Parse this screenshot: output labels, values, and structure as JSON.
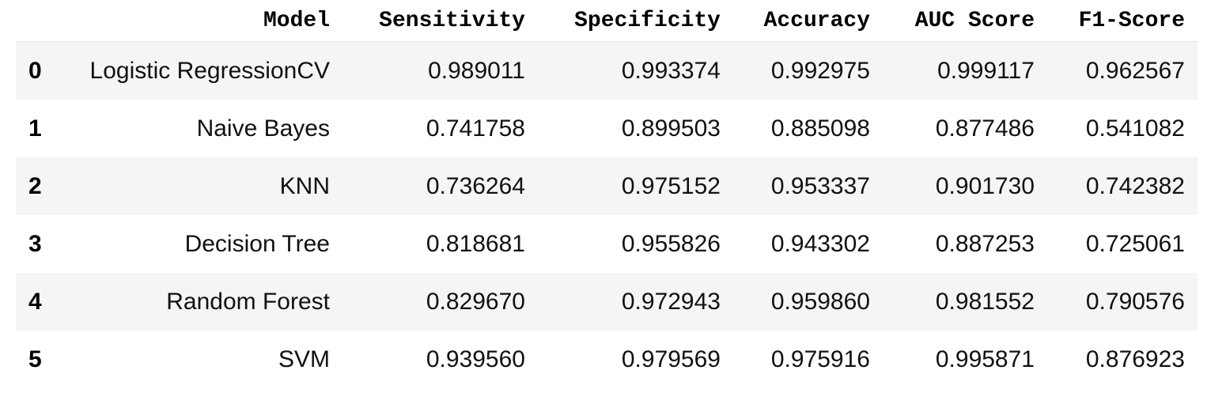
{
  "table": {
    "columns": [
      "Model",
      "Sensitivity",
      "Specificity",
      "Accuracy",
      "AUC Score",
      "F1-Score"
    ],
    "rows": [
      {
        "index": "0",
        "cells": [
          "Logistic RegressionCV",
          "0.989011",
          "0.993374",
          "0.992975",
          "0.999117",
          "0.962567"
        ]
      },
      {
        "index": "1",
        "cells": [
          "Naive Bayes",
          "0.741758",
          "0.899503",
          "0.885098",
          "0.877486",
          "0.541082"
        ]
      },
      {
        "index": "2",
        "cells": [
          "KNN",
          "0.736264",
          "0.975152",
          "0.953337",
          "0.901730",
          "0.742382"
        ]
      },
      {
        "index": "3",
        "cells": [
          "Decision Tree",
          "0.818681",
          "0.955826",
          "0.943302",
          "0.887253",
          "0.725061"
        ]
      },
      {
        "index": "4",
        "cells": [
          "Random Forest",
          "0.829670",
          "0.972943",
          "0.959860",
          "0.981552",
          "0.790576"
        ]
      },
      {
        "index": "5",
        "cells": [
          "SVM",
          "0.939560",
          "0.979569",
          "0.975916",
          "0.995871",
          "0.876923"
        ]
      }
    ]
  }
}
